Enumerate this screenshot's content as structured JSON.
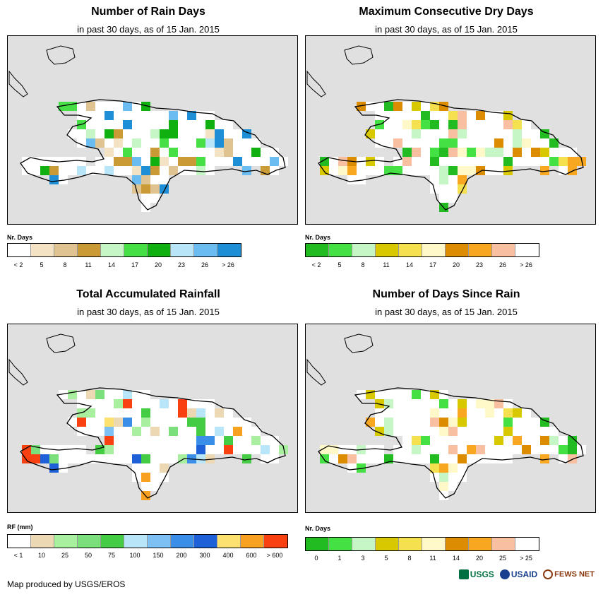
{
  "panels": [
    {
      "id": "rain-days",
      "title": "Number of Rain Days",
      "subtitle": "in past 30 days, as of 15 Jan. 2015",
      "legend_title": "Nr. Days",
      "legend_colors": [
        "#ffffff",
        "#f3e2c4",
        "#dfc391",
        "#c99a35",
        "#c6f5c6",
        "#46e046",
        "#10b010",
        "#b8e6f8",
        "#6bbcf0",
        "#1e8fd6"
      ],
      "legend_labels": [
        "< 2",
        "5",
        "8",
        "11",
        "14",
        "17",
        "20",
        "23",
        "26",
        "> 26"
      ]
    },
    {
      "id": "dry-days",
      "title": "Maximum Consecutive Dry Days",
      "subtitle": "in past 30 days, as of 15 Jan. 2015",
      "legend_title": "Nr. Days",
      "legend_colors": [
        "#22bb22",
        "#44e044",
        "#c6f5c6",
        "#d8c800",
        "#f5e050",
        "#fff8c8",
        "#dc8c00",
        "#f8a820",
        "#f8c0a0",
        "#ffffff"
      ],
      "legend_labels": [
        "< 2",
        "5",
        "8",
        "11",
        "14",
        "17",
        "20",
        "23",
        "26",
        "> 26"
      ]
    },
    {
      "id": "total-rainfall",
      "title": "Total Accumulated Rainfall",
      "subtitle": "in past 30 days, as of 15 Jan. 2015",
      "legend_title": "RF (mm)",
      "legend_colors": [
        "#ffffff",
        "#ecd9b4",
        "#a8f0a0",
        "#7be07b",
        "#44cc44",
        "#b8e6f8",
        "#7cc0f4",
        "#3a8ee8",
        "#1e60d8",
        "#fce070",
        "#f8a020",
        "#f84010"
      ],
      "legend_labels": [
        "< 1",
        "10",
        "25",
        "50",
        "75",
        "100",
        "150",
        "200",
        "300",
        "400",
        "600",
        "> 600"
      ]
    },
    {
      "id": "days-since-rain",
      "title": "Number of Days Since Rain",
      "subtitle": "in past 30 days, as of 15 Jan. 2015",
      "legend_title": "Nr. Days",
      "legend_colors": [
        "#22bb22",
        "#44e044",
        "#c6f5c6",
        "#d8c800",
        "#f5e050",
        "#fff8c8",
        "#dc8c00",
        "#f8a820",
        "#f8c0a0",
        "#ffffff"
      ],
      "legend_labels": [
        "0",
        "1",
        "3",
        "5",
        "8",
        "11",
        "14",
        "20",
        "25",
        "> 25"
      ]
    }
  ],
  "footer": {
    "credit": "Map produced by USGS/EROS"
  },
  "logos": {
    "usgs": "USGS",
    "usaid": "USAID",
    "fews": "FEWS NET"
  },
  "colors": {
    "map_background": "#e0e0e0",
    "land": "#ffffff",
    "outline": "#000000"
  }
}
